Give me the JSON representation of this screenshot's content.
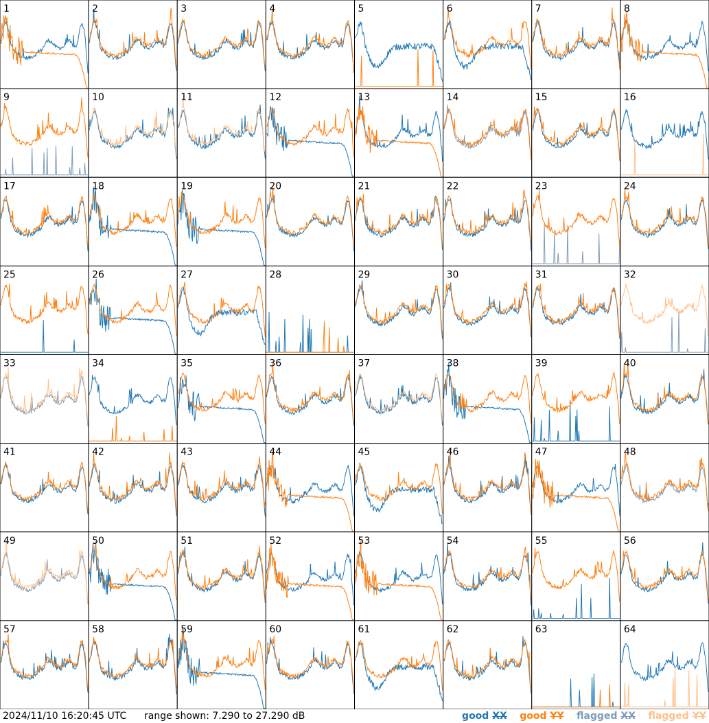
{
  "footer": {
    "timestamp": "2024/11/10 16:20:45 UTC",
    "range_text": "range shown: 7.290 to 27.290 dB"
  },
  "legend": [
    {
      "label": "good",
      "pol": "XX",
      "color": "#1f77b4"
    },
    {
      "label": "good",
      "pol": "YY",
      "color": "#ff7f0e"
    },
    {
      "label": "flagged",
      "pol": "XX",
      "color": "#7f9cb8"
    },
    {
      "label": "flagged",
      "pol": "YY",
      "color": "#ffc08a"
    }
  ],
  "chart_data": {
    "type": "line",
    "grid": {
      "rows": 8,
      "cols": 8
    },
    "yunit": "dB",
    "ylim": [
      7.29,
      27.29
    ],
    "series_colors": {
      "good_XX": "#1f77b4",
      "good_YY": "#ff7f0e",
      "flagged_XX": "#7f9cb8",
      "flagged_YY": "#ffc08a"
    },
    "panel_labels": [
      "1",
      "2",
      "3",
      "4",
      "5",
      "6",
      "7",
      "8",
      "9",
      "10",
      "11",
      "12",
      "13",
      "14",
      "15",
      "16",
      "17",
      "18",
      "19",
      "20",
      "21",
      "22",
      "23",
      "24",
      "25",
      "26",
      "27",
      "28",
      "29",
      "30",
      "31",
      "32",
      "33",
      "34",
      "35",
      "36",
      "37",
      "38",
      "39",
      "40",
      "41",
      "42",
      "43",
      "44",
      "45",
      "46",
      "47",
      "48",
      "49",
      "50",
      "51",
      "52",
      "53",
      "54",
      "55",
      "56",
      "57",
      "58",
      "59",
      "60",
      "61",
      "62",
      "63",
      "64"
    ],
    "panels": [
      {
        "xx": "good",
        "yy": "good",
        "xx_shape": "normal",
        "yy_shape": "rolloff"
      },
      {
        "xx": "good",
        "yy": "good",
        "xx_shape": "normal",
        "yy_shape": "normal"
      },
      {
        "xx": "good",
        "yy": "good",
        "xx_shape": "normal",
        "yy_shape": "normal"
      },
      {
        "xx": "good",
        "yy": "good",
        "xx_shape": "normal",
        "yy_shape": "normal"
      },
      {
        "xx": "good",
        "yy": "good",
        "xx_shape": "dip",
        "yy_shape": "dead"
      },
      {
        "xx": "good",
        "yy": "good",
        "xx_shape": "dip",
        "yy_shape": "normal"
      },
      {
        "xx": "good",
        "yy": "good",
        "xx_shape": "normal",
        "yy_shape": "normal"
      },
      {
        "xx": "good",
        "yy": "good",
        "xx_shape": "normal",
        "yy_shape": "rolloff"
      },
      {
        "xx": "flagged",
        "yy": "good",
        "xx_shape": "dead",
        "yy_shape": "normal"
      },
      {
        "xx": "good",
        "yy": "flagged",
        "xx_shape": "normal",
        "yy_shape": "normal"
      },
      {
        "xx": "good",
        "yy": "flagged",
        "xx_shape": "normal",
        "yy_shape": "normal"
      },
      {
        "xx": "good",
        "yy": "good",
        "xx_shape": "rolloff",
        "yy_shape": "normal"
      },
      {
        "xx": "good",
        "yy": "good",
        "xx_shape": "normal",
        "yy_shape": "rolloff"
      },
      {
        "xx": "flagged",
        "yy": "good",
        "xx_shape": "normal",
        "yy_shape": "normal"
      },
      {
        "xx": "good",
        "yy": "good",
        "xx_shape": "normal",
        "yy_shape": "normal"
      },
      {
        "xx": "good",
        "yy": "flagged",
        "xx_shape": "normal",
        "yy_shape": "dead"
      },
      {
        "xx": "good",
        "yy": "good",
        "xx_shape": "normal",
        "yy_shape": "normal"
      },
      {
        "xx": "good",
        "yy": "good",
        "xx_shape": "rolloff",
        "yy_shape": "normal"
      },
      {
        "xx": "good",
        "yy": "good",
        "xx_shape": "rolloff",
        "yy_shape": "normal"
      },
      {
        "xx": "good",
        "yy": "good",
        "xx_shape": "normal",
        "yy_shape": "normal"
      },
      {
        "xx": "good",
        "yy": "good",
        "xx_shape": "normal",
        "yy_shape": "normal"
      },
      {
        "xx": "good",
        "yy": "good",
        "xx_shape": "normal",
        "yy_shape": "normal"
      },
      {
        "xx": "flagged",
        "yy": "good",
        "xx_shape": "dead",
        "yy_shape": "normal"
      },
      {
        "xx": "good",
        "yy": "good",
        "xx_shape": "normal",
        "yy_shape": "normal"
      },
      {
        "xx": "good",
        "yy": "good",
        "xx_shape": "dead",
        "yy_shape": "normal"
      },
      {
        "xx": "good",
        "yy": "good",
        "xx_shape": "rolloff",
        "yy_shape": "normal"
      },
      {
        "xx": "good",
        "yy": "good",
        "xx_shape": "dip",
        "yy_shape": "normal"
      },
      {
        "xx": "good",
        "yy": "good",
        "xx_shape": "dead",
        "yy_shape": "dead"
      },
      {
        "xx": "good",
        "yy": "good",
        "xx_shape": "normal",
        "yy_shape": "normal"
      },
      {
        "xx": "good",
        "yy": "good",
        "xx_shape": "normal",
        "yy_shape": "normal"
      },
      {
        "xx": "good",
        "yy": "good",
        "xx_shape": "normal",
        "yy_shape": "normal"
      },
      {
        "xx": "flagged",
        "yy": "flagged",
        "xx_shape": "dead",
        "yy_shape": "normal"
      },
      {
        "xx": "flagged",
        "yy": "flagged",
        "xx_shape": "normal",
        "yy_shape": "normal"
      },
      {
        "xx": "good",
        "yy": "good",
        "xx_shape": "normal",
        "yy_shape": "dead"
      },
      {
        "xx": "good",
        "yy": "good",
        "xx_shape": "rolloff",
        "yy_shape": "normal"
      },
      {
        "xx": "good",
        "yy": "good",
        "xx_shape": "normal",
        "yy_shape": "normal"
      },
      {
        "xx": "good",
        "yy": "flagged",
        "xx_shape": "normal",
        "yy_shape": "normal"
      },
      {
        "xx": "good",
        "yy": "good",
        "xx_shape": "rolloff",
        "yy_shape": "normal"
      },
      {
        "xx": "good",
        "yy": "good",
        "xx_shape": "dead",
        "yy_shape": "normal"
      },
      {
        "xx": "good",
        "yy": "good",
        "xx_shape": "normal",
        "yy_shape": "normal"
      },
      {
        "xx": "good",
        "yy": "good",
        "xx_shape": "normal",
        "yy_shape": "normal"
      },
      {
        "xx": "good",
        "yy": "good",
        "xx_shape": "normal",
        "yy_shape": "normal"
      },
      {
        "xx": "good",
        "yy": "good",
        "xx_shape": "normal",
        "yy_shape": "normal"
      },
      {
        "xx": "good",
        "yy": "good",
        "xx_shape": "normal",
        "yy_shape": "rolloff"
      },
      {
        "xx": "good",
        "yy": "good",
        "xx_shape": "dip",
        "yy_shape": "normal"
      },
      {
        "xx": "good",
        "yy": "good",
        "xx_shape": "normal",
        "yy_shape": "normal"
      },
      {
        "xx": "good",
        "yy": "good",
        "xx_shape": "normal",
        "yy_shape": "rolloff"
      },
      {
        "xx": "flagged",
        "yy": "good",
        "xx_shape": "normal",
        "yy_shape": "normal"
      },
      {
        "xx": "flagged",
        "yy": "flagged",
        "xx_shape": "normal",
        "yy_shape": "normal"
      },
      {
        "xx": "good",
        "yy": "good",
        "xx_shape": "rolloff",
        "yy_shape": "normal"
      },
      {
        "xx": "good",
        "yy": "good",
        "xx_shape": "normal",
        "yy_shape": "normal"
      },
      {
        "xx": "good",
        "yy": "good",
        "xx_shape": "normal",
        "yy_shape": "rolloff"
      },
      {
        "xx": "good",
        "yy": "good",
        "xx_shape": "normal",
        "yy_shape": "rolloff"
      },
      {
        "xx": "good",
        "yy": "good",
        "xx_shape": "normal",
        "yy_shape": "normal"
      },
      {
        "xx": "good",
        "yy": "good",
        "xx_shape": "dead",
        "yy_shape": "normal"
      },
      {
        "xx": "good",
        "yy": "good",
        "xx_shape": "normal",
        "yy_shape": "normal"
      },
      {
        "xx": "good",
        "yy": "good",
        "xx_shape": "normal",
        "yy_shape": "normal"
      },
      {
        "xx": "good",
        "yy": "good",
        "xx_shape": "normal",
        "yy_shape": "normal"
      },
      {
        "xx": "good",
        "yy": "good",
        "xx_shape": "rolloff",
        "yy_shape": "normal"
      },
      {
        "xx": "good",
        "yy": "good",
        "xx_shape": "normal",
        "yy_shape": "normal"
      },
      {
        "xx": "good",
        "yy": "good",
        "xx_shape": "dip",
        "yy_shape": "normal"
      },
      {
        "xx": "good",
        "yy": "good",
        "xx_shape": "normal",
        "yy_shape": "normal"
      },
      {
        "xx": "good",
        "yy": "good",
        "xx_shape": "dead",
        "yy_shape": "dead"
      },
      {
        "xx": "good",
        "yy": "flagged",
        "xx_shape": "normal",
        "yy_shape": "dead"
      }
    ]
  }
}
